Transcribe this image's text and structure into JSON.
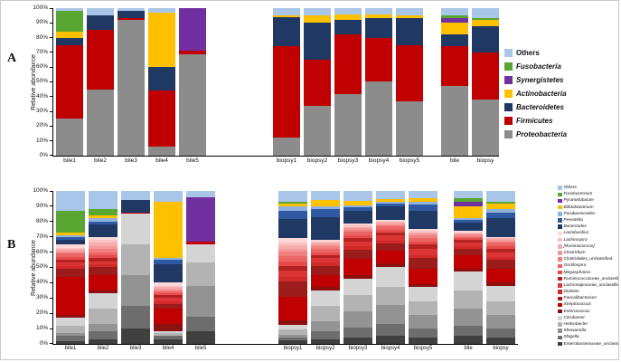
{
  "figure_labels": {
    "panel_a": "A",
    "panel_b": "B"
  },
  "chart_data": [
    {
      "type": "bar",
      "stacked": true,
      "title": "",
      "ylabel": "Relative abundance",
      "xlabel": "",
      "ylim": [
        0,
        100
      ],
      "grid": false,
      "legend_position": "right",
      "yticks": [
        "0%",
        "10%",
        "20%",
        "30%",
        "40%",
        "50%",
        "60%",
        "70%",
        "80%",
        "90%",
        "100%"
      ],
      "categories": [
        "bile1",
        "bile2",
        "bile3",
        "bile4",
        "bile5",
        "biopsy1",
        "biopsy2",
        "biopsy3",
        "biopsy4",
        "biopsy5",
        "bile",
        "biopsy"
      ],
      "groups": [
        [
          0,
          1,
          2,
          3,
          4
        ],
        [
          5,
          6,
          7,
          8,
          9
        ],
        [
          10,
          11
        ]
      ],
      "series": [
        {
          "name": "Proteobacteria",
          "color": "#8c8c8c",
          "italic": true,
          "values": [
            25,
            45,
            92,
            6,
            69,
            12,
            34,
            42,
            50,
            37,
            47,
            38
          ]
        },
        {
          "name": "Firmicutes",
          "color": "#c00000",
          "italic": true,
          "values": [
            50,
            40,
            1,
            38,
            2,
            62,
            31,
            40,
            30,
            38,
            27,
            32
          ]
        },
        {
          "name": "Bacteroidetes",
          "color": "#1f3864",
          "italic": true,
          "values": [
            5,
            10,
            5,
            16,
            0,
            20,
            25,
            10,
            13,
            18,
            8,
            18
          ]
        },
        {
          "name": "Actinobacteria",
          "color": "#ffc000",
          "italic": true,
          "values": [
            4,
            0,
            0,
            37,
            0,
            1,
            5,
            4,
            3,
            2,
            8,
            4
          ]
        },
        {
          "name": "Synergistetes",
          "color": "#7030a0",
          "italic": true,
          "values": [
            0,
            0,
            0,
            0,
            29,
            0,
            0,
            0,
            0,
            0,
            3,
            0
          ]
        },
        {
          "name": "Fusobacteria",
          "color": "#5aa632",
          "italic": true,
          "values": [
            14,
            0,
            0,
            0,
            0,
            0,
            0,
            0,
            0,
            0,
            2,
            1
          ]
        },
        {
          "name": "Others",
          "color": "#a9c6e8",
          "italic": false,
          "values": [
            2,
            5,
            2,
            3,
            0,
            5,
            5,
            4,
            4,
            5,
            5,
            7
          ]
        }
      ]
    },
    {
      "type": "bar",
      "stacked": true,
      "title": "",
      "ylabel": "Relative abundance",
      "xlabel": "",
      "ylim": [
        0,
        100
      ],
      "grid": false,
      "legend_position": "right",
      "yticks": [
        "0%",
        "10%",
        "20%",
        "30%",
        "40%",
        "50%",
        "60%",
        "70%",
        "80%",
        "90%",
        "100%"
      ],
      "categories": [
        "bile1",
        "bile2",
        "bile3",
        "bile4",
        "bile5",
        "biopsy1",
        "biopsy2",
        "biopsy3",
        "biopsy4",
        "biopsy5",
        "bile",
        "biopsy"
      ],
      "groups": [
        [
          0,
          1,
          2,
          3,
          4
        ],
        [
          5,
          6,
          7,
          8,
          9
        ],
        [
          10,
          11
        ]
      ],
      "series": [
        {
          "name": "Enterobacteriaceae_unclassified",
          "color": "#404040",
          "italic": false,
          "values": [
            2,
            3,
            10,
            3,
            8,
            2,
            3,
            4,
            5,
            4,
            5,
            4
          ]
        },
        {
          "name": "Shigella",
          "color": "#6d6d6d",
          "italic": true,
          "values": [
            3,
            5,
            15,
            2,
            10,
            2,
            5,
            6,
            8,
            6,
            7,
            6
          ]
        },
        {
          "name": "Shewanella",
          "color": "#939393",
          "italic": true,
          "values": [
            2,
            5,
            20,
            0,
            20,
            2,
            7,
            10,
            12,
            9,
            11,
            9
          ]
        },
        {
          "name": "Helicobacter",
          "color": "#b3b3b3",
          "italic": true,
          "values": [
            5,
            10,
            20,
            2,
            15,
            3,
            10,
            10,
            12,
            9,
            12,
            9
          ]
        },
        {
          "name": "Citrobacter",
          "color": "#d4d4d4",
          "italic": true,
          "values": [
            5,
            10,
            20,
            1,
            12,
            3,
            10,
            10,
            13,
            9,
            12,
            10
          ]
        },
        {
          "name": "Enterococcus",
          "color": "#8b1010",
          "italic": true,
          "values": [
            2,
            2,
            0,
            5,
            0,
            3,
            2,
            2,
            2,
            2,
            2,
            2
          ]
        },
        {
          "name": "Streptococcus",
          "color": "#c00000",
          "italic": true,
          "values": [
            25,
            10,
            1,
            10,
            2,
            15,
            8,
            10,
            8,
            10,
            9,
            9
          ]
        },
        {
          "name": "Faecalibacterium",
          "color": "#9c1b1b",
          "italic": true,
          "values": [
            5,
            5,
            0,
            3,
            0,
            10,
            6,
            6,
            5,
            7,
            4,
            6
          ]
        },
        {
          "name": "Dialister",
          "color": "#d02a2a",
          "italic": true,
          "values": [
            2,
            2,
            0,
            2,
            0,
            3,
            2,
            2,
            2,
            2,
            2,
            2
          ]
        },
        {
          "name": "Lachnospiraceae_unclassified",
          "color": "#dc3535",
          "italic": false,
          "values": [
            2,
            2,
            0,
            2,
            0,
            4,
            3,
            3,
            3,
            4,
            2,
            3
          ]
        },
        {
          "name": "Ruminococcaceae_unclassified",
          "color": "#b42222",
          "italic": false,
          "values": [
            2,
            2,
            0,
            2,
            0,
            3,
            2,
            2,
            2,
            3,
            2,
            2
          ]
        },
        {
          "name": "Megasphaera",
          "color": "#e64c4c",
          "italic": true,
          "values": [
            2,
            2,
            0,
            1,
            0,
            3,
            2,
            2,
            2,
            2,
            1,
            2
          ]
        },
        {
          "name": "Oscillospira",
          "color": "#ec6565",
          "italic": true,
          "values": [
            2,
            2,
            0,
            1,
            0,
            3,
            2,
            2,
            2,
            2,
            1,
            2
          ]
        },
        {
          "name": "Clostridiales_unclassified",
          "color": "#f18080",
          "italic": false,
          "values": [
            1,
            2,
            0,
            1,
            0,
            3,
            2,
            1,
            1,
            2,
            1,
            1
          ]
        },
        {
          "name": "Clostridium",
          "color": "#f49898",
          "italic": true,
          "values": [
            1,
            2,
            0,
            1,
            0,
            2,
            1,
            1,
            1,
            1,
            1,
            1
          ]
        },
        {
          "name": "[Ruminococcus]",
          "color": "#f7adad",
          "italic": true,
          "values": [
            1,
            2,
            0,
            1,
            0,
            2,
            1,
            1,
            1,
            1,
            0,
            1
          ]
        },
        {
          "name": "Lachnospira",
          "color": "#fac2c2",
          "italic": true,
          "values": [
            1,
            2,
            0,
            1,
            0,
            2,
            1,
            1,
            0,
            1,
            1,
            0
          ]
        },
        {
          "name": "Lactobacillus",
          "color": "#fdd8d8",
          "italic": true,
          "values": [
            2,
            2,
            0,
            2,
            0,
            3,
            1,
            1,
            1,
            1,
            1,
            1
          ]
        },
        {
          "name": "Bacteroides",
          "color": "#1f3864",
          "italic": true,
          "values": [
            3,
            8,
            8,
            12,
            0,
            12,
            15,
            8,
            9,
            12,
            5,
            12
          ]
        },
        {
          "name": "Prevotella",
          "color": "#2f5aa3",
          "italic": true,
          "values": [
            2,
            2,
            0,
            3,
            0,
            5,
            5,
            2,
            2,
            4,
            2,
            4
          ]
        },
        {
          "name": "Parabacteroides",
          "color": "#8fb3dc",
          "italic": true,
          "values": [
            1,
            2,
            0,
            1,
            0,
            3,
            2,
            1,
            1,
            2,
            1,
            2
          ]
        },
        {
          "name": "Bifidobacterium",
          "color": "#ffc000",
          "italic": true,
          "values": [
            2,
            2,
            0,
            37,
            0,
            2,
            4,
            3,
            2,
            2,
            8,
            4
          ]
        },
        {
          "name": "Pyramidobacter",
          "color": "#7030a0",
          "italic": true,
          "values": [
            0,
            0,
            0,
            0,
            29,
            0,
            0,
            0,
            0,
            0,
            3,
            0
          ]
        },
        {
          "name": "Fusobacterium",
          "color": "#5aa632",
          "italic": true,
          "values": [
            14,
            4,
            0,
            0,
            0,
            1,
            0,
            0,
            0,
            0,
            2,
            1
          ]
        },
        {
          "name": "Others",
          "color": "#a9c6e8",
          "italic": false,
          "values": [
            13,
            12,
            6,
            7,
            4,
            7,
            6,
            6,
            5,
            5,
            5,
            7
          ]
        }
      ]
    }
  ]
}
